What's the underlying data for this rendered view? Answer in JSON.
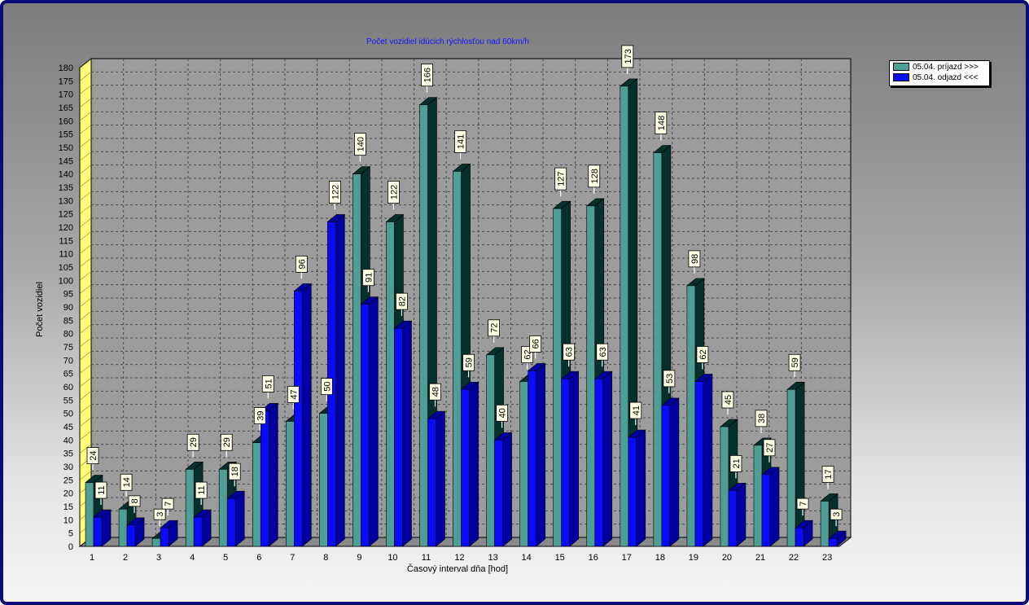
{
  "chart_data": {
    "type": "bar",
    "title": "Počet vozidiel idúcich rýchlosťou nad 60km/h",
    "xlabel": "Časový interval dňa [hod]",
    "ylabel": "Počet vozidiel",
    "ylim": [
      0,
      180
    ],
    "yticks": [
      0,
      5,
      10,
      15,
      20,
      25,
      30,
      35,
      40,
      45,
      50,
      55,
      60,
      65,
      70,
      75,
      80,
      85,
      90,
      95,
      100,
      105,
      110,
      115,
      120,
      125,
      130,
      135,
      140,
      145,
      150,
      155,
      160,
      165,
      170,
      175,
      180
    ],
    "categories": [
      "1",
      "2",
      "3",
      "4",
      "5",
      "6",
      "7",
      "8",
      "9",
      "10",
      "11",
      "12",
      "13",
      "14",
      "15",
      "16",
      "17",
      "18",
      "19",
      "20",
      "21",
      "22",
      "23"
    ],
    "series": [
      {
        "name": "05.04.  príjazd >>>",
        "color": "#4f9e95",
        "values": [
          24,
          14,
          3,
          29,
          29,
          39,
          47,
          50,
          140,
          122,
          166,
          141,
          72,
          62,
          127,
          128,
          173,
          148,
          98,
          45,
          38,
          59,
          17
        ]
      },
      {
        "name": "05.04.  odjazd <<<",
        "color": "#0a0aff",
        "values": [
          11,
          8,
          7,
          11,
          18,
          51,
          96,
          122,
          91,
          82,
          48,
          59,
          40,
          66,
          63,
          63,
          41,
          53,
          62,
          21,
          27,
          7,
          3
        ]
      }
    ],
    "grid": true,
    "legend_position": "top-right"
  }
}
